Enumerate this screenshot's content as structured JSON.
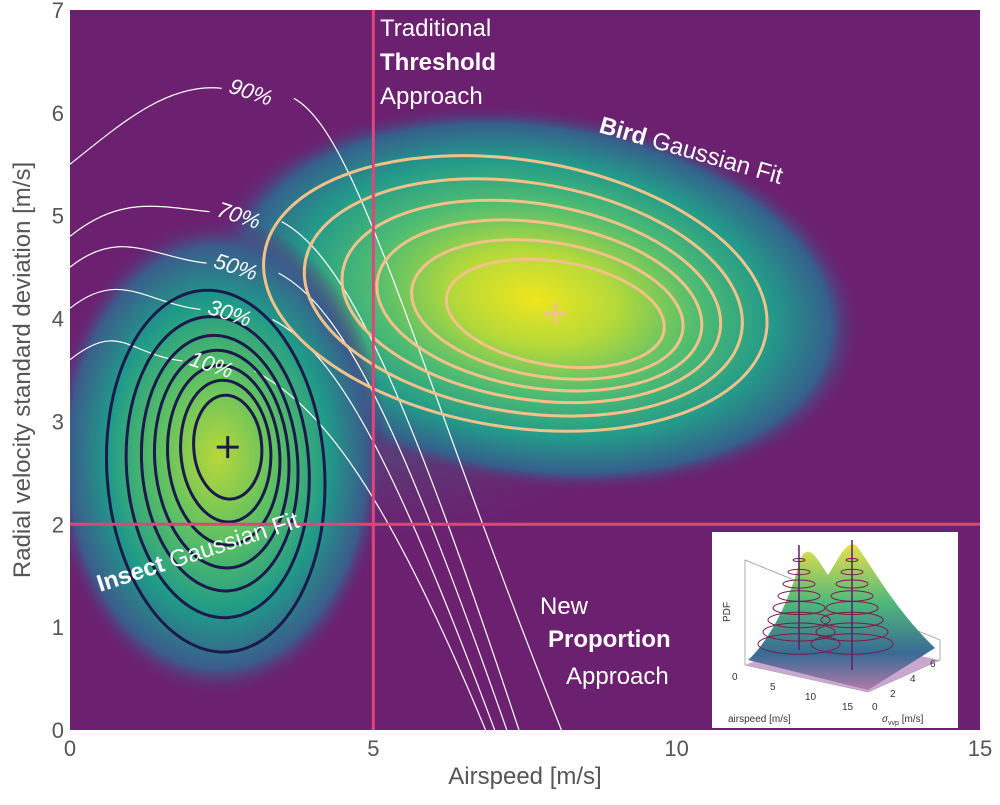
{
  "chart_data": {
    "type": "heatmap",
    "xlabel": "Airspeed [m/s]",
    "ylabel": "Radial velocity standard deviation [m/s]",
    "xlim": [
      0,
      15
    ],
    "ylim": [
      0,
      7
    ],
    "xticks": [
      "0",
      "5",
      "10",
      "15"
    ],
    "yticks": [
      "0",
      "1",
      "2",
      "3",
      "4",
      "5",
      "6",
      "7"
    ],
    "threshold_lines": {
      "airspeed": 5,
      "radial_sd": 2
    },
    "centers": {
      "insect": {
        "x": 2.6,
        "y": 2.75,
        "marker": "+"
      },
      "bird": {
        "x": 8.0,
        "y": 4.05,
        "marker": "+"
      }
    },
    "proportion_contours": [
      {
        "label": "10%",
        "y_at_left": 3.6
      },
      {
        "label": "30%",
        "y_at_left": 4.1
      },
      {
        "label": "50%",
        "y_at_left": 4.5
      },
      {
        "label": "70%",
        "y_at_left": 4.8
      },
      {
        "label": "90%",
        "y_at_left": 5.5
      }
    ],
    "annotations": {
      "threshold_line1": "Traditional",
      "threshold_line2": "Threshold",
      "threshold_line3": "Approach",
      "proportion_line1": "New",
      "proportion_line2": "Proportion",
      "proportion_line3": "Approach",
      "bird_bold": "Bird",
      "bird_rest": " Gaussian Fit",
      "insect_bold": "Insect",
      "insect_rest": " Gaussian Fit"
    },
    "colors": {
      "background": "#6b2170",
      "threshold": "#e0457a",
      "insect_contour": "#1c1a4a",
      "bird_contour": "#f2c28a",
      "proportion_contour": "#ffffff"
    },
    "inset": {
      "ylabel": "PDF",
      "xlabel": "airspeed [m/s]",
      "zlabel": "σ",
      "zlabel_sub": "vvp",
      "zlabel_unit": " [m/s]",
      "xticks": [
        "0",
        "5",
        "10",
        "15"
      ],
      "zticks": [
        "0",
        "2",
        "4",
        "6"
      ]
    }
  }
}
